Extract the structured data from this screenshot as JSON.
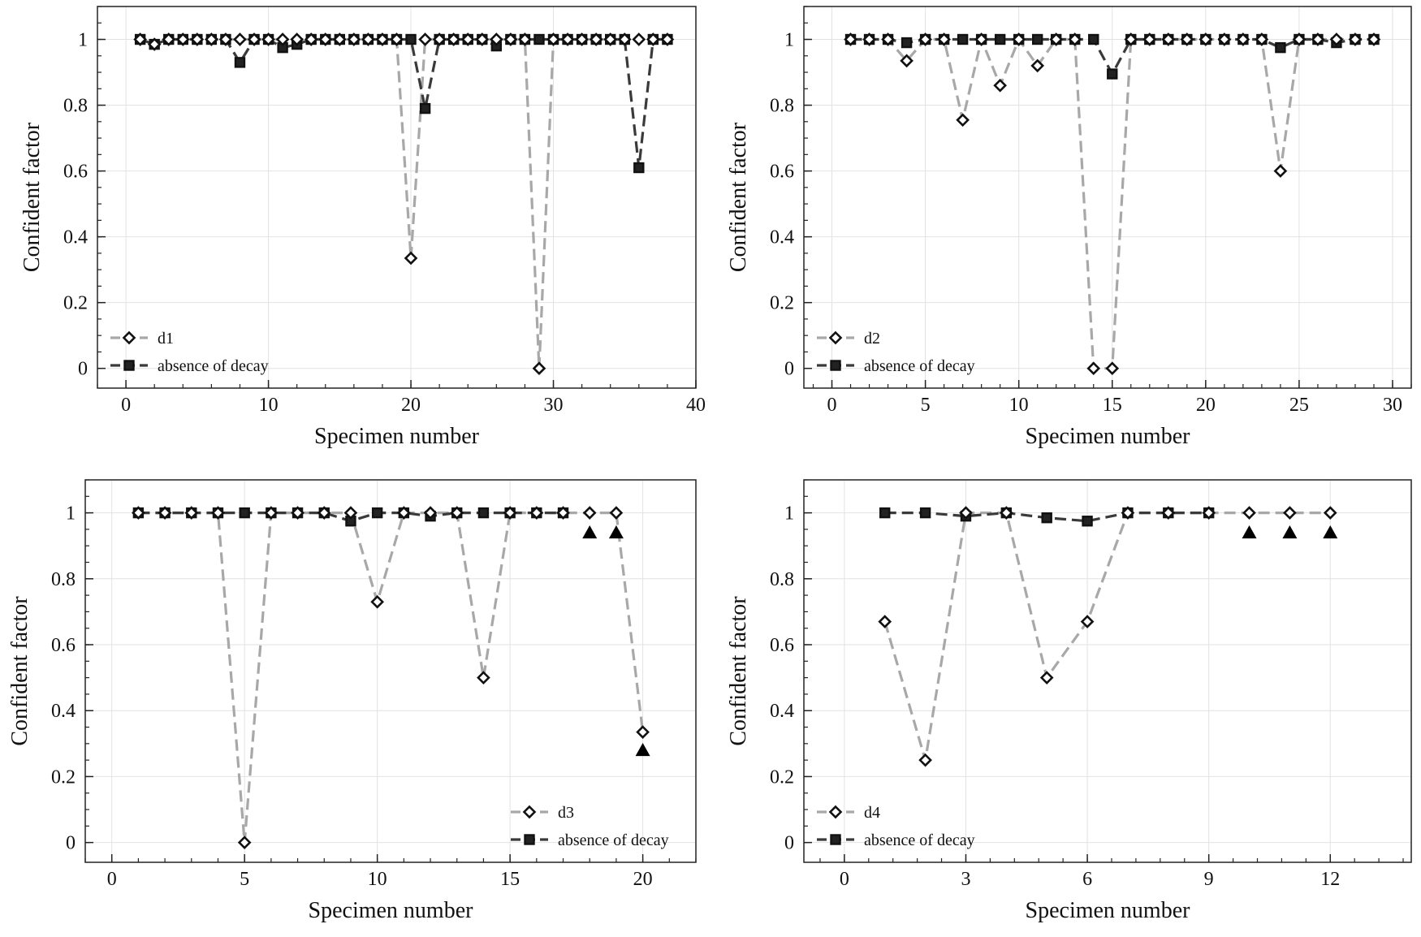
{
  "chart_data": [
    {
      "type": "line",
      "xlabel": "Specimen number",
      "ylabel": "Confident factor",
      "xlim": [
        -2,
        40
      ],
      "ylim": [
        -0.06,
        1.1
      ],
      "xticks": [
        0,
        10,
        20,
        30,
        40
      ],
      "yticks": [
        0,
        0.2,
        0.4,
        0.6,
        0.8,
        1
      ],
      "ytick_labels": [
        "0",
        "0.2",
        "0.4",
        "0.6",
        "0.8",
        "1"
      ],
      "grid": true,
      "legend_position": "bottom-left",
      "series": [
        {
          "name": "d1",
          "style": "dashed",
          "marker": "diamond",
          "color": "#a8a8a8",
          "x": [
            1,
            2,
            3,
            4,
            5,
            6,
            7,
            8,
            9,
            10,
            11,
            12,
            13,
            14,
            15,
            16,
            17,
            18,
            19,
            20,
            21,
            22,
            23,
            24,
            25,
            26,
            27,
            28,
            29,
            30,
            31,
            32,
            33,
            34,
            35,
            36,
            37,
            38
          ],
          "y": [
            1,
            0.985,
            1,
            1,
            1,
            1,
            1,
            1,
            1,
            1,
            1,
            1,
            1,
            1,
            1,
            1,
            1,
            1,
            1,
            0.335,
            1,
            1,
            1,
            1,
            1,
            1,
            1,
            1,
            0,
            1,
            1,
            1,
            1,
            1,
            1,
            1,
            1,
            1
          ]
        },
        {
          "name": "absence of decay",
          "style": "dashed",
          "marker": "square",
          "color": "#3a3a3a",
          "x": [
            1,
            2,
            3,
            4,
            5,
            6,
            7,
            8,
            9,
            10,
            11,
            12,
            13,
            14,
            15,
            16,
            17,
            18,
            19,
            20,
            21,
            22,
            23,
            24,
            25,
            26,
            27,
            28,
            29,
            30,
            31,
            32,
            33,
            34,
            35,
            36,
            37,
            38
          ],
          "y": [
            1,
            0.985,
            1,
            1,
            1,
            1,
            1,
            0.93,
            1,
            1,
            0.975,
            0.985,
            1,
            1,
            1,
            1,
            1,
            1,
            1,
            1,
            0.79,
            1,
            1,
            1,
            1,
            0.98,
            1,
            1,
            1,
            1,
            1,
            1,
            1,
            1,
            1,
            0.61,
            1,
            1
          ]
        }
      ],
      "triangles": []
    },
    {
      "type": "line",
      "xlabel": "Specimen number",
      "ylabel": "Confident factor",
      "xlim": [
        -1.5,
        31
      ],
      "ylim": [
        -0.06,
        1.1
      ],
      "xticks": [
        0,
        5,
        10,
        15,
        20,
        25,
        30
      ],
      "yticks": [
        0,
        0.2,
        0.4,
        0.6,
        0.8,
        1
      ],
      "ytick_labels": [
        "0",
        "0.2",
        "0.4",
        "0.6",
        "0.8",
        "1"
      ],
      "grid": true,
      "legend_position": "bottom-left",
      "series": [
        {
          "name": "d2",
          "style": "dashed",
          "marker": "diamond",
          "color": "#a8a8a8",
          "x": [
            1,
            2,
            3,
            4,
            5,
            6,
            7,
            8,
            9,
            10,
            11,
            12,
            13,
            14,
            15,
            16,
            17,
            18,
            19,
            20,
            21,
            22,
            23,
            24,
            25,
            26,
            27,
            28,
            29
          ],
          "y": [
            1,
            1,
            1,
            0.935,
            1,
            1,
            0.755,
            1,
            0.86,
            1,
            0.92,
            1,
            1,
            0,
            0,
            1,
            1,
            1,
            1,
            1,
            1,
            1,
            1,
            0.6,
            1,
            1,
            1,
            1,
            1
          ]
        },
        {
          "name": "absence of decay",
          "style": "dashed",
          "marker": "square",
          "color": "#3a3a3a",
          "x": [
            1,
            2,
            3,
            4,
            5,
            6,
            7,
            8,
            9,
            10,
            11,
            12,
            13,
            14,
            15,
            16,
            17,
            18,
            19,
            20,
            21,
            22,
            23,
            24,
            25,
            26,
            27,
            28,
            29
          ],
          "y": [
            1,
            1,
            1,
            0.99,
            1,
            1,
            1,
            1,
            1,
            1,
            1,
            1,
            1,
            1,
            0.895,
            1,
            1,
            1,
            1,
            1,
            1,
            1,
            1,
            0.975,
            1,
            1,
            0.99,
            1,
            1
          ]
        }
      ],
      "triangles": []
    },
    {
      "type": "line",
      "xlabel": "Specimen number",
      "ylabel": "Confident factor",
      "xlim": [
        -1,
        22
      ],
      "ylim": [
        -0.06,
        1.1
      ],
      "xticks": [
        0,
        5,
        10,
        15,
        20
      ],
      "yticks": [
        0,
        0.2,
        0.4,
        0.6,
        0.8,
        1
      ],
      "ytick_labels": [
        "0",
        "0.2",
        "0.4",
        "0.6",
        "0.8",
        "1"
      ],
      "grid": true,
      "legend_position": "bottom-right",
      "series": [
        {
          "name": "d3",
          "style": "dashed",
          "marker": "diamond",
          "color": "#a8a8a8",
          "x": [
            1,
            2,
            3,
            4,
            5,
            6,
            7,
            8,
            9,
            10,
            11,
            12,
            13,
            14,
            15,
            16,
            17,
            18,
            19,
            20
          ],
          "y": [
            1,
            1,
            1,
            1,
            0,
            1,
            1,
            1,
            1,
            0.73,
            1,
            1,
            1,
            0.5,
            1,
            1,
            1,
            1,
            1,
            0.335
          ]
        },
        {
          "name": "absence of decay",
          "style": "dashed",
          "marker": "square",
          "color": "#3a3a3a",
          "x": [
            1,
            2,
            3,
            4,
            5,
            6,
            7,
            8,
            9,
            10,
            11,
            12,
            13,
            14,
            15,
            16,
            17
          ],
          "y": [
            1,
            1,
            1,
            1,
            1,
            1,
            1,
            1,
            0.975,
            1,
            1,
            0.99,
            1,
            1,
            1,
            1,
            1
          ]
        }
      ],
      "triangles": [
        {
          "x": 18,
          "y": 0.94
        },
        {
          "x": 19,
          "y": 0.94
        },
        {
          "x": 20,
          "y": 0.28
        }
      ]
    },
    {
      "type": "line",
      "xlabel": "Specimen number",
      "ylabel": "Confident factor",
      "xlim": [
        -1,
        14
      ],
      "ylim": [
        -0.06,
        1.1
      ],
      "xticks": [
        0,
        3,
        6,
        9,
        12
      ],
      "yticks": [
        0,
        0.2,
        0.4,
        0.6,
        0.8,
        1
      ],
      "ytick_labels": [
        "0",
        "0.2",
        "0.4",
        "0.6",
        "0.8",
        "1"
      ],
      "grid": true,
      "legend_position": "bottom-left",
      "series": [
        {
          "name": "d4",
          "style": "dashed",
          "marker": "diamond",
          "color": "#a8a8a8",
          "x": [
            1,
            2,
            3,
            4,
            5,
            6,
            7,
            8,
            9,
            10,
            11,
            12
          ],
          "y": [
            0.67,
            0.25,
            1,
            1,
            0.5,
            0.67,
            1,
            1,
            1,
            1,
            1,
            1
          ]
        },
        {
          "name": "absence of decay",
          "style": "dashed",
          "marker": "square",
          "color": "#3a3a3a",
          "x": [
            1,
            2,
            3,
            4,
            5,
            6,
            7,
            8,
            9
          ],
          "y": [
            1,
            1,
            0.99,
            1,
            0.985,
            0.975,
            1,
            1,
            1
          ]
        }
      ],
      "triangles": [
        {
          "x": 10,
          "y": 0.94
        },
        {
          "x": 11,
          "y": 0.94
        },
        {
          "x": 12,
          "y": 0.94
        }
      ]
    }
  ]
}
